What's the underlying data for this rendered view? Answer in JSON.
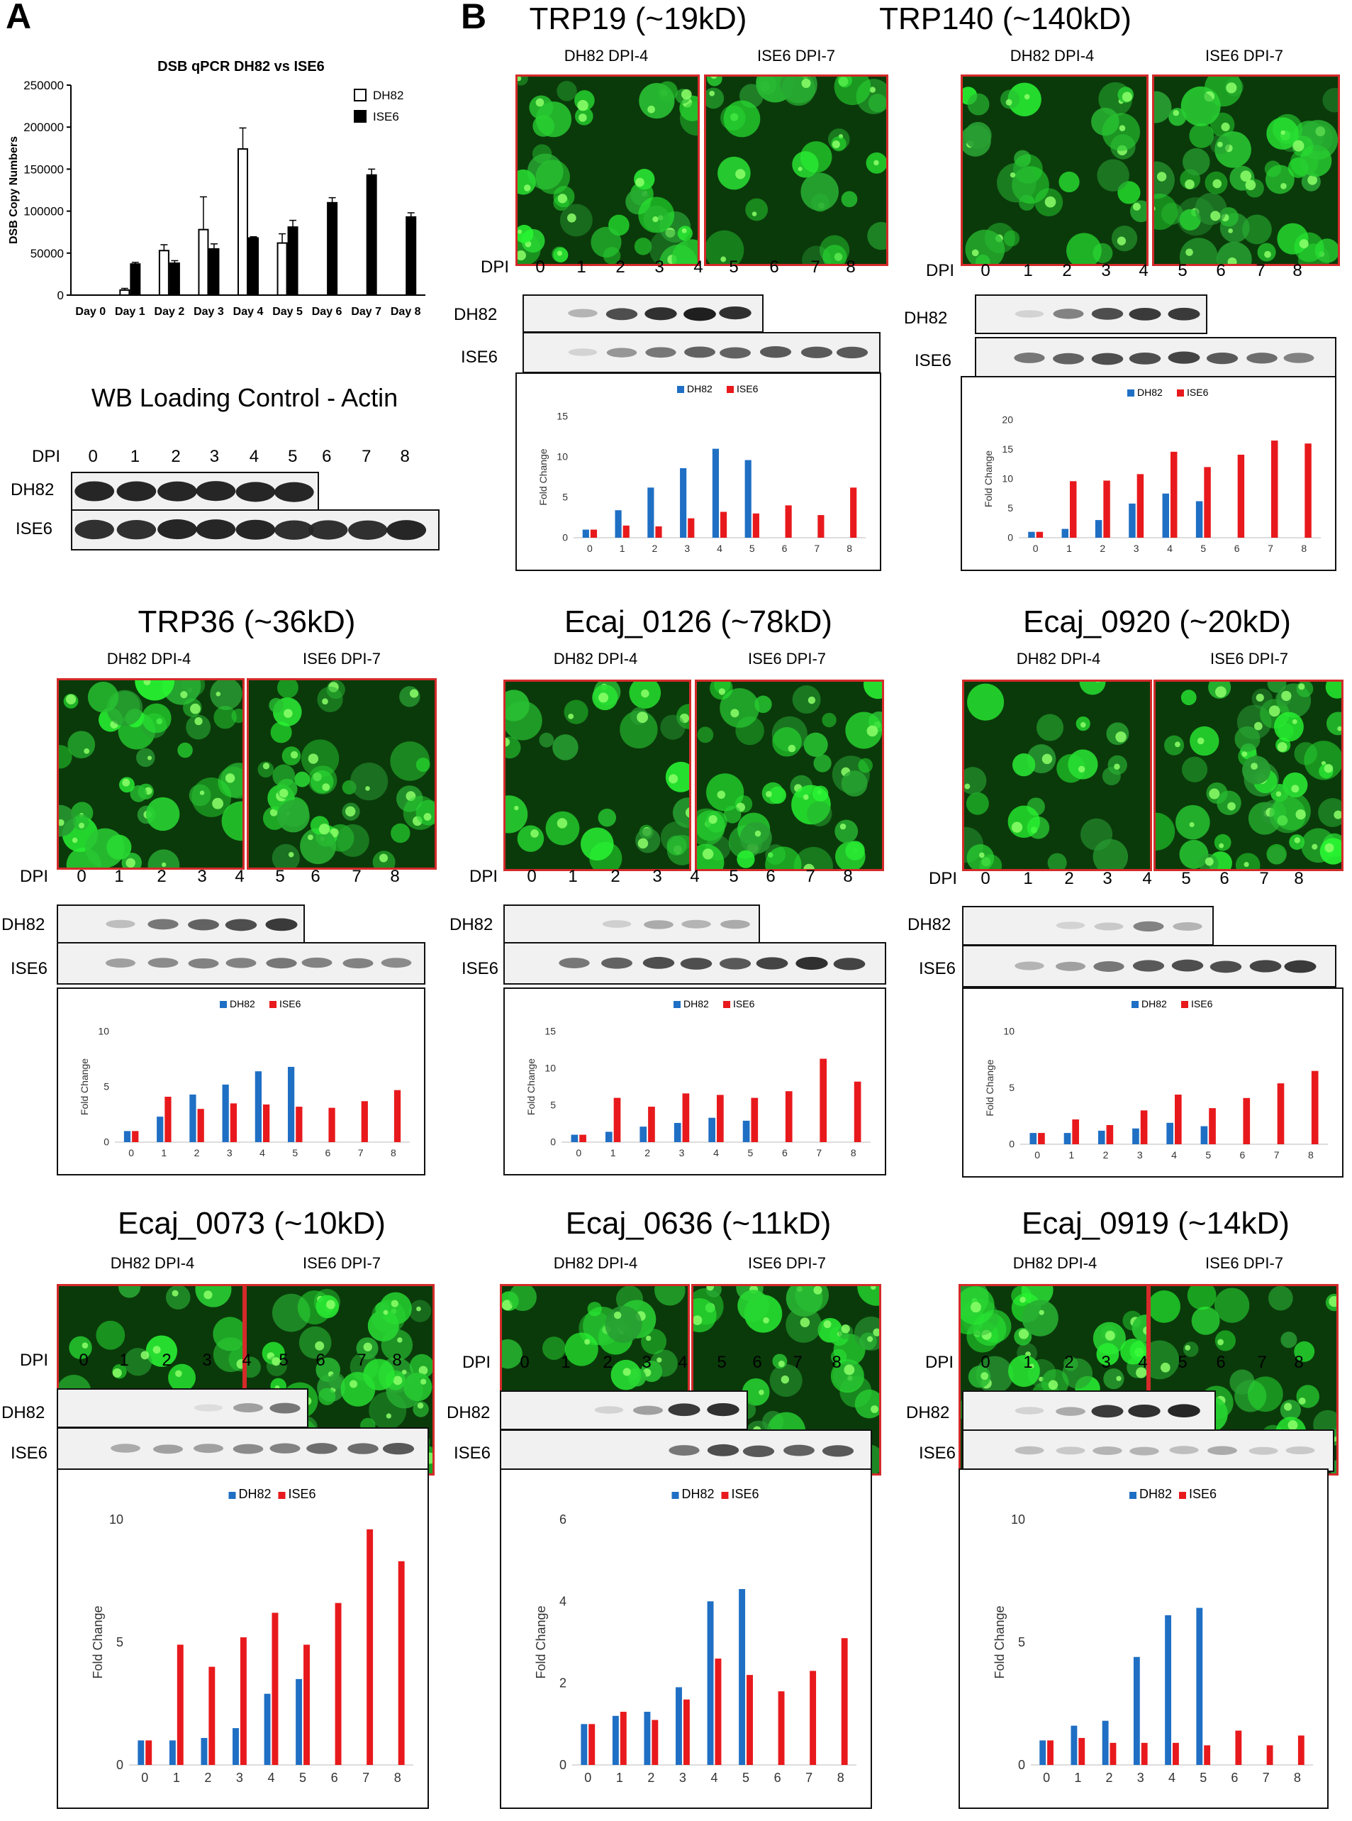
{
  "panels": {
    "a": "A",
    "b": "B"
  },
  "qpcr": {
    "title": "DSB qPCR DH82 vs ISE6",
    "ylabel": "DSB Copy Numbers",
    "legend": [
      "DH82",
      "ISE6"
    ]
  },
  "wb_actin": {
    "title": "WB Loading Control - Actin",
    "dpi_label": "DPI",
    "dpi": [
      "0",
      "1",
      "2",
      "3",
      "4",
      "5",
      "6",
      "7",
      "8"
    ],
    "rows": [
      "DH82",
      "ISE6"
    ]
  },
  "proteins": [
    {
      "title": "TRP19 (~19kD)",
      "micro": [
        "DH82 DPI-4",
        "ISE6 DPI-7"
      ],
      "dpi_label": "DPI",
      "rows": [
        "DH82",
        "ISE6"
      ]
    },
    {
      "title": "TRP140 (~140kD)",
      "micro": [
        "DH82 DPI-4",
        "ISE6 DPI-7"
      ],
      "dpi_label": "DPI",
      "rows": [
        "DH82",
        "ISE6"
      ]
    },
    {
      "title": "TRP36 (~36kD)",
      "micro": [
        "DH82 DPI-4",
        "ISE6 DPI-7"
      ],
      "dpi_label": "DPI",
      "rows": [
        "DH82",
        "ISE6"
      ]
    },
    {
      "title": "Ecaj_0126 (~78kD)",
      "micro": [
        "DH82 DPI-4",
        "ISE6 DPI-7"
      ],
      "dpi_label": "DPI",
      "rows": [
        "DH82",
        "ISE6"
      ]
    },
    {
      "title": "Ecaj_0920 (~20kD)",
      "micro": [
        "DH82 DPI-4",
        "ISE6 DPI-7"
      ],
      "dpi_label": "DPI",
      "rows": [
        "DH82",
        "ISE6"
      ]
    },
    {
      "title": "Ecaj_0073 (~10kD)",
      "micro": [
        "DH82 DPI-4",
        "ISE6 DPI-7"
      ],
      "dpi_label": "DPI",
      "rows": [
        "DH82",
        "ISE6"
      ]
    },
    {
      "title": "Ecaj_0636 (~11kD)",
      "micro": [
        "DH82 DPI-4",
        "ISE6 DPI-7"
      ],
      "dpi_label": "DPI",
      "rows": [
        "DH82",
        "ISE6"
      ]
    },
    {
      "title": "Ecaj_0919 (~14kD)",
      "micro": [
        "DH82 DPI-4",
        "ISE6 DPI-7"
      ],
      "dpi_label": "DPI",
      "rows": [
        "DH82",
        "ISE6"
      ]
    }
  ],
  "colors": {
    "dh82_fc": "#1f6fc4",
    "ise6_fc": "#e8191c",
    "frame": "#d42a2a",
    "fluor": "#2ecc40"
  },
  "chart_data": [
    {
      "type": "bar",
      "title": "DSB qPCR DH82 vs ISE6",
      "ylabel": "DSB Copy Numbers",
      "categories": [
        "Day 0",
        "Day 1",
        "Day 2",
        "Day 3",
        "Day 4",
        "Day 5",
        "Day 6",
        "Day 7",
        "Day 8"
      ],
      "yticks": [
        "0",
        "50000",
        "100000",
        "150000",
        "200000",
        "250000"
      ],
      "ylim": [
        0,
        250000
      ],
      "legend_position": "top-right",
      "series": [
        {
          "name": "DH82",
          "values": [
            0,
            6000,
            53000,
            78000,
            174000,
            62000,
            null,
            null,
            null
          ],
          "errors": [
            0,
            2000,
            7000,
            39000,
            25000,
            11000,
            null,
            null,
            null
          ]
        },
        {
          "name": "ISE6",
          "values": [
            0,
            37000,
            38000,
            55000,
            68000,
            81000,
            110000,
            143000,
            93000
          ],
          "errors": [
            0,
            2000,
            3000,
            6000,
            1500,
            8000,
            6000,
            7000,
            5000
          ]
        }
      ]
    },
    {
      "type": "bar",
      "title": "TRP19 (~19kD)",
      "ylabel": "Fold Change",
      "categories": [
        "0",
        "1",
        "2",
        "3",
        "4",
        "5",
        "6",
        "7",
        "8"
      ],
      "yticks": [
        "0",
        "5",
        "10",
        "15"
      ],
      "ylim": [
        0,
        15
      ],
      "series": [
        {
          "name": "DH82",
          "values": [
            1,
            3.4,
            6.2,
            8.6,
            11,
            9.6,
            null,
            null,
            null
          ]
        },
        {
          "name": "ISE6",
          "values": [
            1,
            1.5,
            1.4,
            2.4,
            3.2,
            3,
            4,
            2.8,
            6.2
          ]
        }
      ]
    },
    {
      "type": "bar",
      "title": "TRP140 (~140kD)",
      "ylabel": "Fold Change",
      "categories": [
        "0",
        "1",
        "2",
        "3",
        "4",
        "5",
        "6",
        "7",
        "8"
      ],
      "yticks": [
        "0",
        "5",
        "10",
        "15",
        "20"
      ],
      "ylim": [
        0,
        20
      ],
      "series": [
        {
          "name": "DH82",
          "values": [
            1,
            1.5,
            3,
            5.8,
            7.5,
            6.2,
            null,
            null,
            null
          ]
        },
        {
          "name": "ISE6",
          "values": [
            1,
            9.6,
            9.7,
            10.8,
            14.6,
            12,
            14.1,
            16.5,
            16
          ]
        }
      ]
    },
    {
      "type": "bar",
      "title": "TRP36 (~36kD)",
      "ylabel": "Fold Change",
      "categories": [
        "0",
        "1",
        "2",
        "3",
        "4",
        "5",
        "6",
        "7",
        "8"
      ],
      "yticks": [
        "0",
        "5",
        "10"
      ],
      "ylim": [
        0,
        10
      ],
      "series": [
        {
          "name": "DH82",
          "values": [
            1,
            2.3,
            4.3,
            5.2,
            6.4,
            6.8,
            null,
            null,
            null
          ]
        },
        {
          "name": "ISE6",
          "values": [
            1,
            4.1,
            3,
            3.5,
            3.4,
            3.2,
            3.1,
            3.7,
            4.7
          ]
        }
      ]
    },
    {
      "type": "bar",
      "title": "Ecaj_0126 (~78kD)",
      "ylabel": "Fold Change",
      "categories": [
        "0",
        "1",
        "2",
        "3",
        "4",
        "5",
        "6",
        "7",
        "8"
      ],
      "yticks": [
        "0",
        "5",
        "10",
        "15"
      ],
      "ylim": [
        0,
        15
      ],
      "series": [
        {
          "name": "DH82",
          "values": [
            1,
            1.4,
            2.1,
            2.6,
            3.3,
            2.9,
            null,
            null,
            null
          ]
        },
        {
          "name": "ISE6",
          "values": [
            1,
            6,
            4.8,
            6.6,
            6.4,
            6,
            6.9,
            11.3,
            8.2
          ]
        }
      ]
    },
    {
      "type": "bar",
      "title": "Ecaj_0920 (~20kD)",
      "ylabel": "Fold Change",
      "categories": [
        "0",
        "1",
        "2",
        "3",
        "4",
        "5",
        "6",
        "7",
        "8"
      ],
      "yticks": [
        "0",
        "5",
        "10"
      ],
      "ylim": [
        0,
        10
      ],
      "series": [
        {
          "name": "DH82",
          "values": [
            1,
            1,
            1.2,
            1.4,
            1.9,
            1.6,
            null,
            null,
            null
          ]
        },
        {
          "name": "ISE6",
          "values": [
            1,
            2.2,
            1.7,
            3,
            4.4,
            3.2,
            4.1,
            5.4,
            6.5
          ]
        }
      ]
    },
    {
      "type": "bar",
      "title": "Ecaj_0073 (~10kD)",
      "ylabel": "Fold Change",
      "categories": [
        "0",
        "1",
        "2",
        "3",
        "4",
        "5",
        "6",
        "7",
        "8"
      ],
      "yticks": [
        "0",
        "5",
        "10"
      ],
      "ylim": [
        0,
        10
      ],
      "series": [
        {
          "name": "DH82",
          "values": [
            1,
            1,
            1.1,
            1.5,
            2.9,
            3.5,
            null,
            null,
            null
          ]
        },
        {
          "name": "ISE6",
          "values": [
            1,
            4.9,
            4,
            5.2,
            6.2,
            4.9,
            6.6,
            9.6,
            8.3
          ]
        }
      ]
    },
    {
      "type": "bar",
      "title": "Ecaj_0636 (~11kD)",
      "ylabel": "Fold Change",
      "categories": [
        "0",
        "1",
        "2",
        "3",
        "4",
        "5",
        "6",
        "7",
        "8"
      ],
      "yticks": [
        "0",
        "2",
        "4",
        "6"
      ],
      "ylim": [
        0,
        6
      ],
      "series": [
        {
          "name": "DH82",
          "values": [
            1,
            1.2,
            1.3,
            1.9,
            4,
            4.3,
            null,
            null,
            null
          ]
        },
        {
          "name": "ISE6",
          "values": [
            1,
            1.3,
            1.1,
            1.6,
            2.6,
            2.2,
            1.8,
            2.3,
            3.1
          ]
        }
      ]
    },
    {
      "type": "bar",
      "title": "Ecaj_0919 (~14kD)",
      "ylabel": "Fold Change",
      "categories": [
        "0",
        "1",
        "2",
        "3",
        "4",
        "5",
        "6",
        "7",
        "8"
      ],
      "yticks": [
        "0",
        "5",
        "10"
      ],
      "ylim": [
        0,
        10
      ],
      "series": [
        {
          "name": "DH82",
          "values": [
            1,
            1.6,
            1.8,
            4.4,
            6.1,
            6.4,
            null,
            null,
            null
          ]
        },
        {
          "name": "ISE6",
          "values": [
            1,
            1.1,
            0.9,
            0.9,
            0.9,
            0.8,
            1.4,
            0.8,
            1.2
          ]
        }
      ]
    }
  ]
}
